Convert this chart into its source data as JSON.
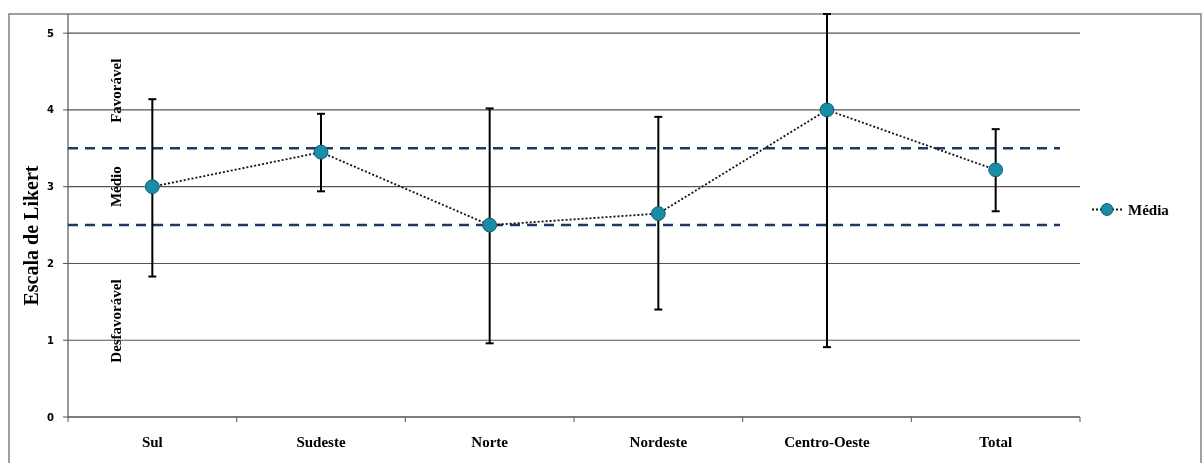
{
  "chart_data": {
    "type": "line",
    "ylabel": "Escala de Likert",
    "categories": [
      "Sul",
      "Sudeste",
      "Norte",
      "Nordeste",
      "Centro-Oeste",
      "Total"
    ],
    "series": [
      {
        "name": "Média",
        "color": "#1a8ca5",
        "values": [
          3.0,
          3.45,
          2.5,
          2.65,
          4.0,
          3.22
        ],
        "errors": [
          [
            1.83,
            4.14
          ],
          [
            2.94,
            3.95
          ],
          [
            0.96,
            4.02
          ],
          [
            1.4,
            3.91
          ],
          [
            0.91,
            5.25
          ],
          [
            2.68,
            3.75
          ]
        ]
      }
    ],
    "ylim": [
      0,
      5.25
    ],
    "yticks": [
      0,
      1,
      2,
      3,
      4,
      5
    ],
    "grid": "y",
    "legend": "right",
    "marker": "circle",
    "line_style": "dotted",
    "ref_lines": [
      {
        "axis": "y",
        "value": 3.5,
        "color": "#1f3864",
        "line_style": "dashed"
      },
      {
        "axis": "y",
        "value": 2.5,
        "color": "#1f3864",
        "line_style": "dashed"
      }
    ],
    "annotations": [
      "Favorável",
      "Médio",
      "Desfavorável"
    ]
  }
}
